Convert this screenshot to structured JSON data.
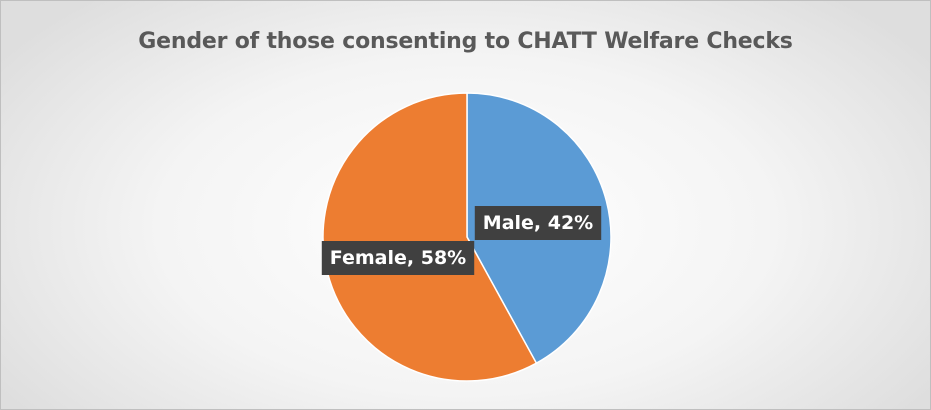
{
  "chart_data": {
    "type": "pie",
    "title": "Gender of those consenting to CHATT Welfare Checks",
    "categories": [
      "Male",
      "Female"
    ],
    "values": [
      42,
      58
    ],
    "unit": "%",
    "data_labels": [
      "Male, 42%",
      "Female, 58%"
    ],
    "colors": [
      "#5b9bd5",
      "#ed7d31"
    ],
    "label_style": "dark box with white text",
    "legend": "none"
  }
}
